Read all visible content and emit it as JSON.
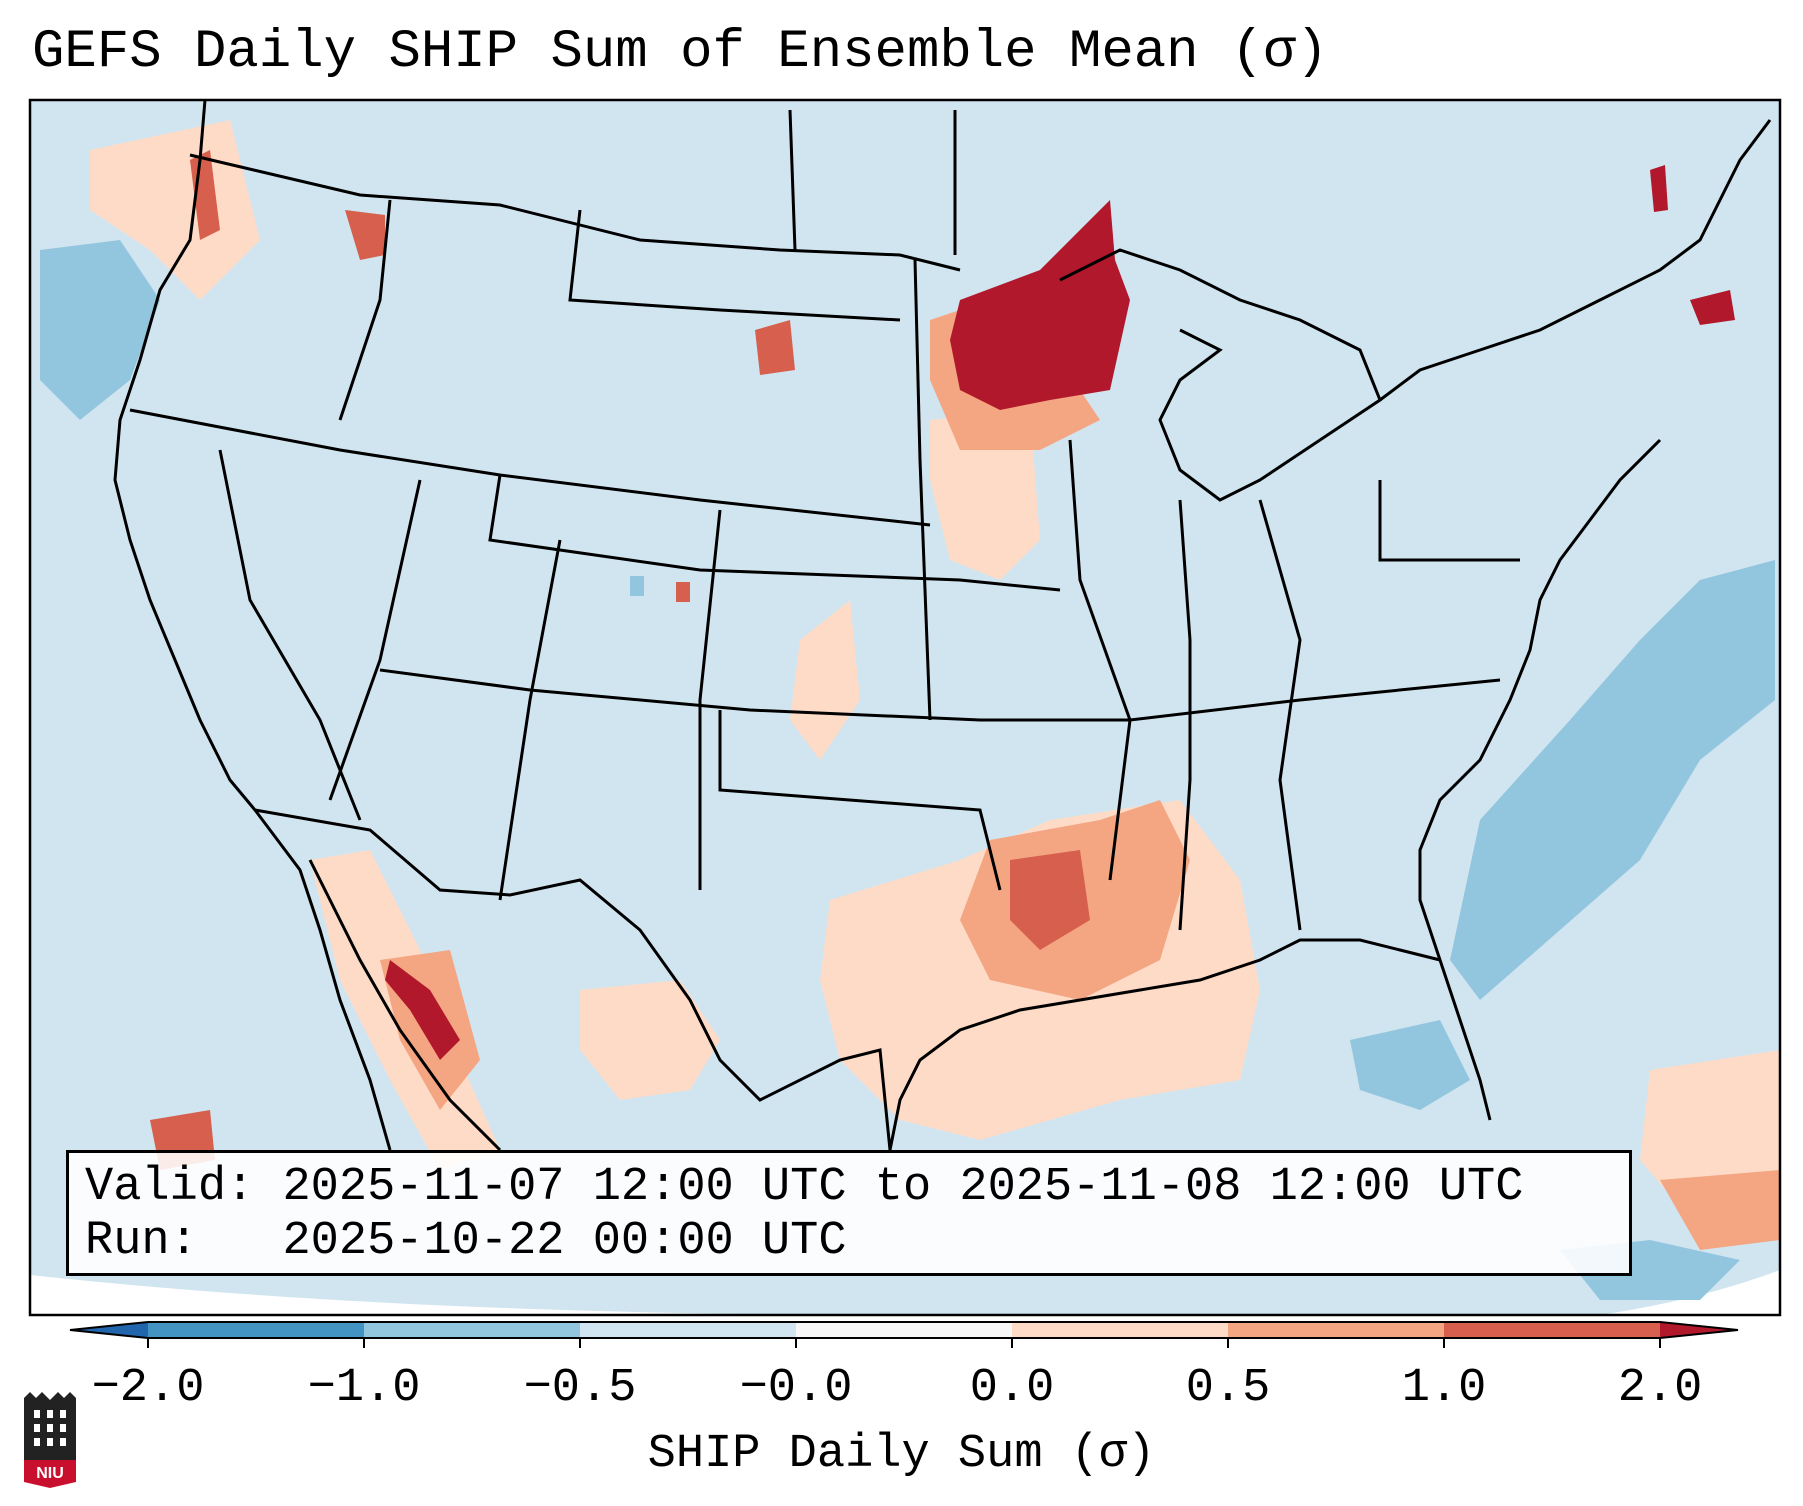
{
  "title": "GEFS Daily SHIP Sum of Ensemble Mean (σ)",
  "info": {
    "valid_label": "Valid:",
    "valid_value": "2025-11-07 12:00 UTC to 2025-11-08 12:00 UTC",
    "run_label": "Run:",
    "run_value": "2025-10-22 00:00 UTC"
  },
  "colorbar": {
    "label": "SHIP Daily Sum (σ)",
    "ticks": [
      "−2.0",
      "−1.0",
      "−0.5",
      "−0.0",
      "0.0",
      "0.5",
      "1.0",
      "2.0"
    ],
    "colors": [
      "#4393c3",
      "#92c5de",
      "#d1e5f0",
      "#f7f7f7",
      "#fddbc7",
      "#f4a582",
      "#d6604d"
    ],
    "under_color": "#2166ac",
    "over_color": "#b2182b"
  },
  "map": {
    "background_color": "#d1e5f0",
    "outside_color": "#ffffff",
    "regions": [
      {
        "name": "upper-midwest-max",
        "level": 2.0
      },
      {
        "name": "lower-mississippi-valley",
        "level": 1.0
      },
      {
        "name": "gulf-of-mexico",
        "level": 0.3
      },
      {
        "name": "gulf-of-california",
        "level": 1.2
      },
      {
        "name": "pacific-northwest",
        "level": 0.6
      },
      {
        "name": "western-atlantic",
        "level": -0.7
      }
    ]
  },
  "logo": {
    "text": "NIU"
  }
}
